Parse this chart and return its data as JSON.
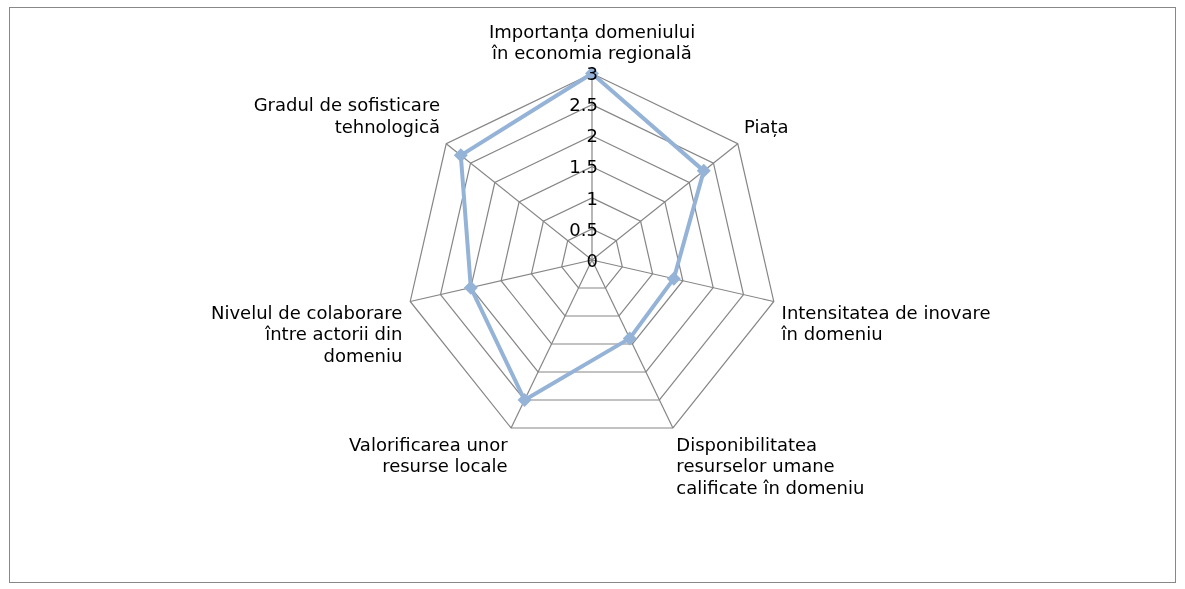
{
  "chart_data": {
    "type": "radar",
    "categories": [
      "Importanța domeniului în economia regională",
      "Piața",
      "Intensitatea de inovare în domeniu",
      "Disponibilitatea resurselor umane calificate în domeniu",
      "Valorificarea unor resurse locale",
      "Nivelul de colaborare între actorii din domeniu",
      "Gradul de sofisticare tehnologică"
    ],
    "series": [
      {
        "color": "#95b3d7",
        "values": [
          3,
          2.3,
          1.35,
          1.4,
          2.5,
          2,
          2.7
        ]
      }
    ],
    "ylim": [
      0,
      3
    ],
    "yticks": [
      0,
      0.5,
      1,
      1.5,
      2,
      2.5,
      3
    ],
    "marker": "diamond",
    "grid": true,
    "legend": false
  }
}
